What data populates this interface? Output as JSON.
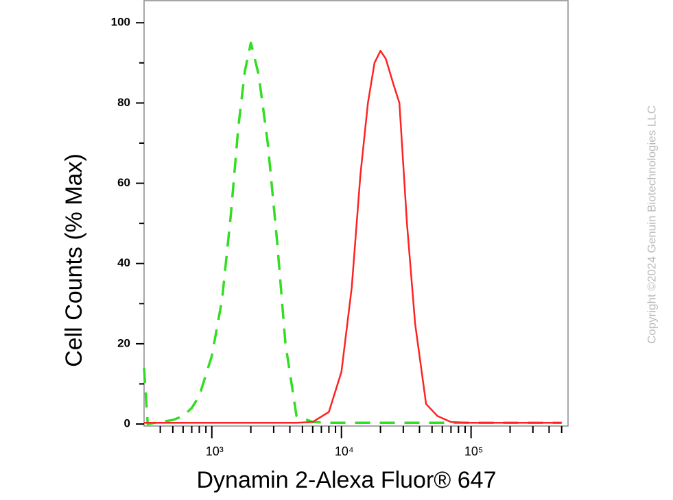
{
  "chart_data": {
    "type": "line",
    "xlabel": "Dynamin 2-Alexa Fluor® 647",
    "ylabel": "Cell Counts (% Max)",
    "watermark": "Copyright ©2024 Genuin Biotechnologies LLC",
    "xscale": "log",
    "xlim": [
      300,
      560000
    ],
    "ylim": [
      -0.5,
      105.5
    ],
    "xticks": [
      {
        "value": 1000,
        "label": "10³"
      },
      {
        "value": 10000,
        "label": "10⁴"
      },
      {
        "value": 100000,
        "label": "10⁵"
      }
    ],
    "xminorticks": [
      400,
      500,
      600,
      700,
      800,
      900,
      2000,
      3000,
      4000,
      5000,
      6000,
      7000,
      8000,
      9000,
      20000,
      30000,
      40000,
      50000,
      60000,
      70000,
      80000,
      90000,
      200000,
      300000,
      400000,
      500000
    ],
    "yticks": [
      0,
      20,
      40,
      60,
      80,
      100
    ],
    "yminorticks": [
      10,
      30,
      50,
      70,
      90
    ],
    "x": [
      300,
      320,
      400,
      500,
      600,
      700,
      800,
      1000,
      1200,
      1400,
      1600,
      1800,
      2000,
      2300,
      2700,
      3200,
      3700,
      4500,
      6000,
      8000,
      10000,
      12000,
      14000,
      16000,
      18000,
      20000,
      22000,
      25000,
      28000,
      32000,
      37000,
      45000,
      55000,
      70000,
      100000,
      200000,
      500000
    ],
    "series": [
      {
        "color": "#33dd22",
        "dashed": true,
        "values": [
          14,
          0,
          0.5,
          1,
          2,
          4,
          7,
          17,
          31,
          52,
          74,
          88,
          95,
          87,
          70,
          45,
          20,
          2,
          0.5,
          0.3,
          0.3,
          0.3,
          0.3,
          0.3,
          0.3,
          0.3,
          0.3,
          0.3,
          0.3,
          0.3,
          0.3,
          0.3,
          0.3,
          0.3,
          0.3,
          0.3,
          0.3
        ]
      },
      {
        "color": "#ff2222",
        "dashed": false,
        "values": [
          0.3,
          0.3,
          0.3,
          0.3,
          0.3,
          0.3,
          0.3,
          0.3,
          0.3,
          0.3,
          0.3,
          0.3,
          0.3,
          0.3,
          0.3,
          0.3,
          0.3,
          0.3,
          0.5,
          3,
          13,
          34,
          62,
          80,
          90,
          93,
          91,
          85,
          80,
          50,
          25,
          5,
          2,
          0.5,
          0.3,
          0.3,
          0.3
        ]
      }
    ]
  }
}
